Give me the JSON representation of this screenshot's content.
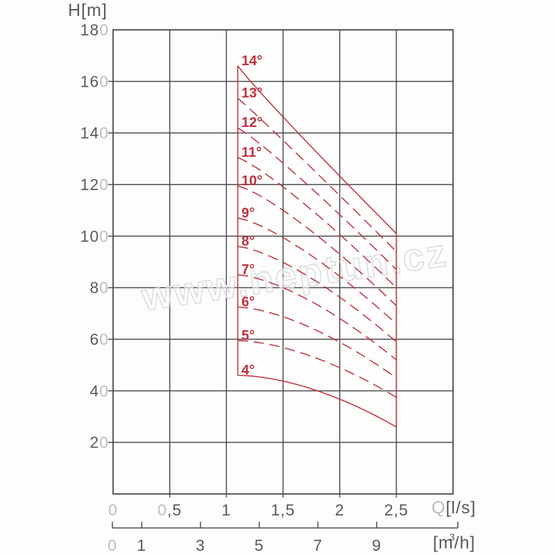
{
  "title_labels": {
    "y_unit": "H[m]",
    "x_unit_q": "Q",
    "x_unit_rest": "[l/s]",
    "x2_pre": "[m",
    "x2_sup": "3",
    "x2_post": "/h]"
  },
  "watermark": {
    "text": "www.neptun.cz"
  },
  "colors": {
    "background": "#fdfdfd",
    "grid": "#4b4b4b",
    "tick_dark": "#5a5a5a",
    "tick_light": "#bdbdbd",
    "curve_red": "#bd3a43",
    "label_red": "#c0323e",
    "watermark_stroke": "#dcdcdc"
  },
  "chart_data": {
    "type": "line",
    "title": "",
    "xlabel": "Q[l/s]",
    "x2label": "[m3/h]",
    "ylabel": "H[m]",
    "xlim": [
      0,
      3
    ],
    "ylim": [
      0,
      180
    ],
    "grid": true,
    "x_gridline_step_ls": 0.5,
    "y_gridline_step_m": 20,
    "legend_position": "none",
    "y_ticks": [
      {
        "value": 180,
        "parts": [
          [
            "18",
            "dk"
          ],
          [
            "0",
            "lt"
          ]
        ]
      },
      {
        "value": 160,
        "parts": [
          [
            "16",
            "dk"
          ],
          [
            "0",
            "lt"
          ]
        ]
      },
      {
        "value": 140,
        "parts": [
          [
            "14",
            "dk"
          ],
          [
            "0",
            "lt"
          ]
        ]
      },
      {
        "value": 120,
        "parts": [
          [
            "12",
            "dk"
          ],
          [
            "0",
            "lt"
          ]
        ]
      },
      {
        "value": 100,
        "parts": [
          [
            "10",
            "dk"
          ],
          [
            "0",
            "lt"
          ]
        ]
      },
      {
        "value": 80,
        "parts": [
          [
            "8",
            "dk"
          ],
          [
            "0",
            "lt"
          ]
        ]
      },
      {
        "value": 60,
        "parts": [
          [
            "6",
            "dk"
          ],
          [
            "0",
            "lt"
          ]
        ]
      },
      {
        "value": 40,
        "parts": [
          [
            "4",
            "dk"
          ],
          [
            "0",
            "lt"
          ]
        ]
      },
      {
        "value": 20,
        "parts": [
          [
            "2",
            "dk"
          ],
          [
            "0",
            "lt"
          ]
        ]
      }
    ],
    "x_ticks": [
      {
        "value": 0,
        "parts": [
          [
            "0",
            "lt"
          ]
        ]
      },
      {
        "value": 0.5,
        "parts": [
          [
            "0",
            "lt"
          ],
          [
            ",5",
            "dk"
          ]
        ]
      },
      {
        "value": 1,
        "parts": [
          [
            "1",
            "dk"
          ]
        ]
      },
      {
        "value": 1.5,
        "parts": [
          [
            "1,5",
            "dk"
          ]
        ]
      },
      {
        "value": 2,
        "parts": [
          [
            "2",
            "dk"
          ]
        ]
      },
      {
        "value": 2.5,
        "parts": [
          [
            "2,5",
            "dk"
          ]
        ]
      }
    ],
    "ruler_ticks": [
      {
        "value": 0,
        "parts": [
          [
            "0",
            "lt"
          ]
        ]
      },
      {
        "value": 1,
        "parts": [
          [
            "1",
            "dk"
          ]
        ]
      },
      {
        "value": 3,
        "parts": [
          [
            "3",
            "dk"
          ]
        ]
      },
      {
        "value": 5,
        "parts": [
          [
            "5",
            "dk"
          ]
        ]
      },
      {
        "value": 7,
        "parts": [
          [
            "7",
            "dk"
          ]
        ]
      },
      {
        "value": 9,
        "parts": [
          [
            "9",
            "dk"
          ]
        ]
      }
    ],
    "unit_conversion": "1 l/s = 3.6 m3/h",
    "q_range_ls": [
      1.1,
      2.5
    ],
    "series": [
      {
        "name": "14°",
        "impeller_angle_deg": 14,
        "H_start": 166,
        "H_end": 101,
        "line": "solid"
      },
      {
        "name": "13°",
        "impeller_angle_deg": 13,
        "H_start": 153.5,
        "H_end": 94,
        "line": "dashed"
      },
      {
        "name": "12°",
        "impeller_angle_deg": 12,
        "H_start": 142,
        "H_end": 87,
        "line": "dashed"
      },
      {
        "name": "11°",
        "impeller_angle_deg": 11,
        "H_start": 130.5,
        "H_end": 80,
        "line": "dashed"
      },
      {
        "name": "10°",
        "impeller_angle_deg": 10,
        "H_start": 119.5,
        "H_end": 73,
        "line": "dashed"
      },
      {
        "name": "9°",
        "impeller_angle_deg": 9,
        "H_start": 107,
        "H_end": 66,
        "line": "dashed"
      },
      {
        "name": "8°",
        "impeller_angle_deg": 8,
        "H_start": 96,
        "H_end": 59,
        "line": "dashed"
      },
      {
        "name": "7°",
        "impeller_angle_deg": 7,
        "H_start": 85,
        "H_end": 52,
        "line": "dashed"
      },
      {
        "name": "6°",
        "impeller_angle_deg": 6,
        "H_start": 72.5,
        "H_end": 45,
        "line": "dashed"
      },
      {
        "name": "5°",
        "impeller_angle_deg": 5,
        "H_start": 59.5,
        "H_end": 37.5,
        "line": "dashed"
      },
      {
        "name": "4°",
        "impeller_angle_deg": 4,
        "H_start": 46,
        "H_end": 26,
        "line": "solid"
      }
    ],
    "envelope": {
      "left_boundary": "solid",
      "right_boundary": "solid"
    }
  }
}
